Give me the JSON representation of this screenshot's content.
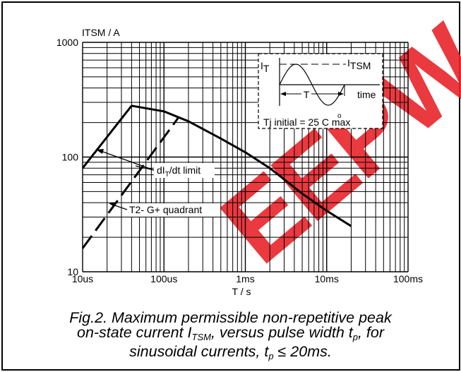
{
  "chart_data": {
    "type": "line",
    "x_scale": "log",
    "y_scale": "log",
    "xlim": [
      "10us",
      "100ms"
    ],
    "ylim": [
      10,
      1000
    ],
    "grid": true,
    "y_axis_label": "ITSM / A",
    "x_axis_label": "T / s",
    "x_ticks": [
      "10us",
      "100us",
      "1ms",
      "10ms",
      "100ms"
    ],
    "y_ticks": [
      "10",
      "100",
      "1000"
    ],
    "series": [
      {
        "name": "ITSM",
        "style": "solid",
        "points": [
          [
            "40us",
            280
          ],
          [
            "100us",
            250
          ],
          [
            "200us",
            205
          ],
          [
            "500us",
            145
          ],
          [
            "1ms",
            110
          ],
          [
            "2ms",
            80
          ],
          [
            "5ms",
            48
          ],
          [
            "10ms",
            34
          ],
          [
            "20ms",
            25
          ]
        ]
      },
      {
        "name": "dI_T/dt limit",
        "style": "solid",
        "points": [
          [
            "10us",
            80
          ],
          [
            "40us",
            280
          ]
        ]
      },
      {
        "name": "T2- G+ quadrant",
        "style": "dashed",
        "points": [
          [
            "10us",
            16
          ],
          [
            "150us",
            220
          ]
        ]
      }
    ],
    "annotations": {
      "dit_label": "dI",
      "dit_sub": "T",
      "dit_suffix": "/dt limit",
      "quadrant_label": "T2- G+ quadrant"
    },
    "inset": {
      "it_label": "I",
      "it_sub": "T",
      "itsm_label": "I",
      "itsm_sub": "TSM",
      "period_label": "T",
      "time_label": "time",
      "tj_label": "Tj initial = 25 C max",
      "degree_mark": "o"
    }
  },
  "watermark": {
    "text": "EEPW",
    "color": "#e8232a"
  },
  "caption": {
    "line1": "Fig.2.   Maximum permissible non-repetitive peak",
    "line2_a": "on-state current I",
    "line2_sub": "TSM",
    "line2_b": ", versus pulse width t",
    "line2_sub2": "p",
    "line2_c": ", for",
    "line3_a": "sinusoidal currents, t",
    "line3_sub": "p",
    "line3_b": " ≤ 20ms."
  }
}
